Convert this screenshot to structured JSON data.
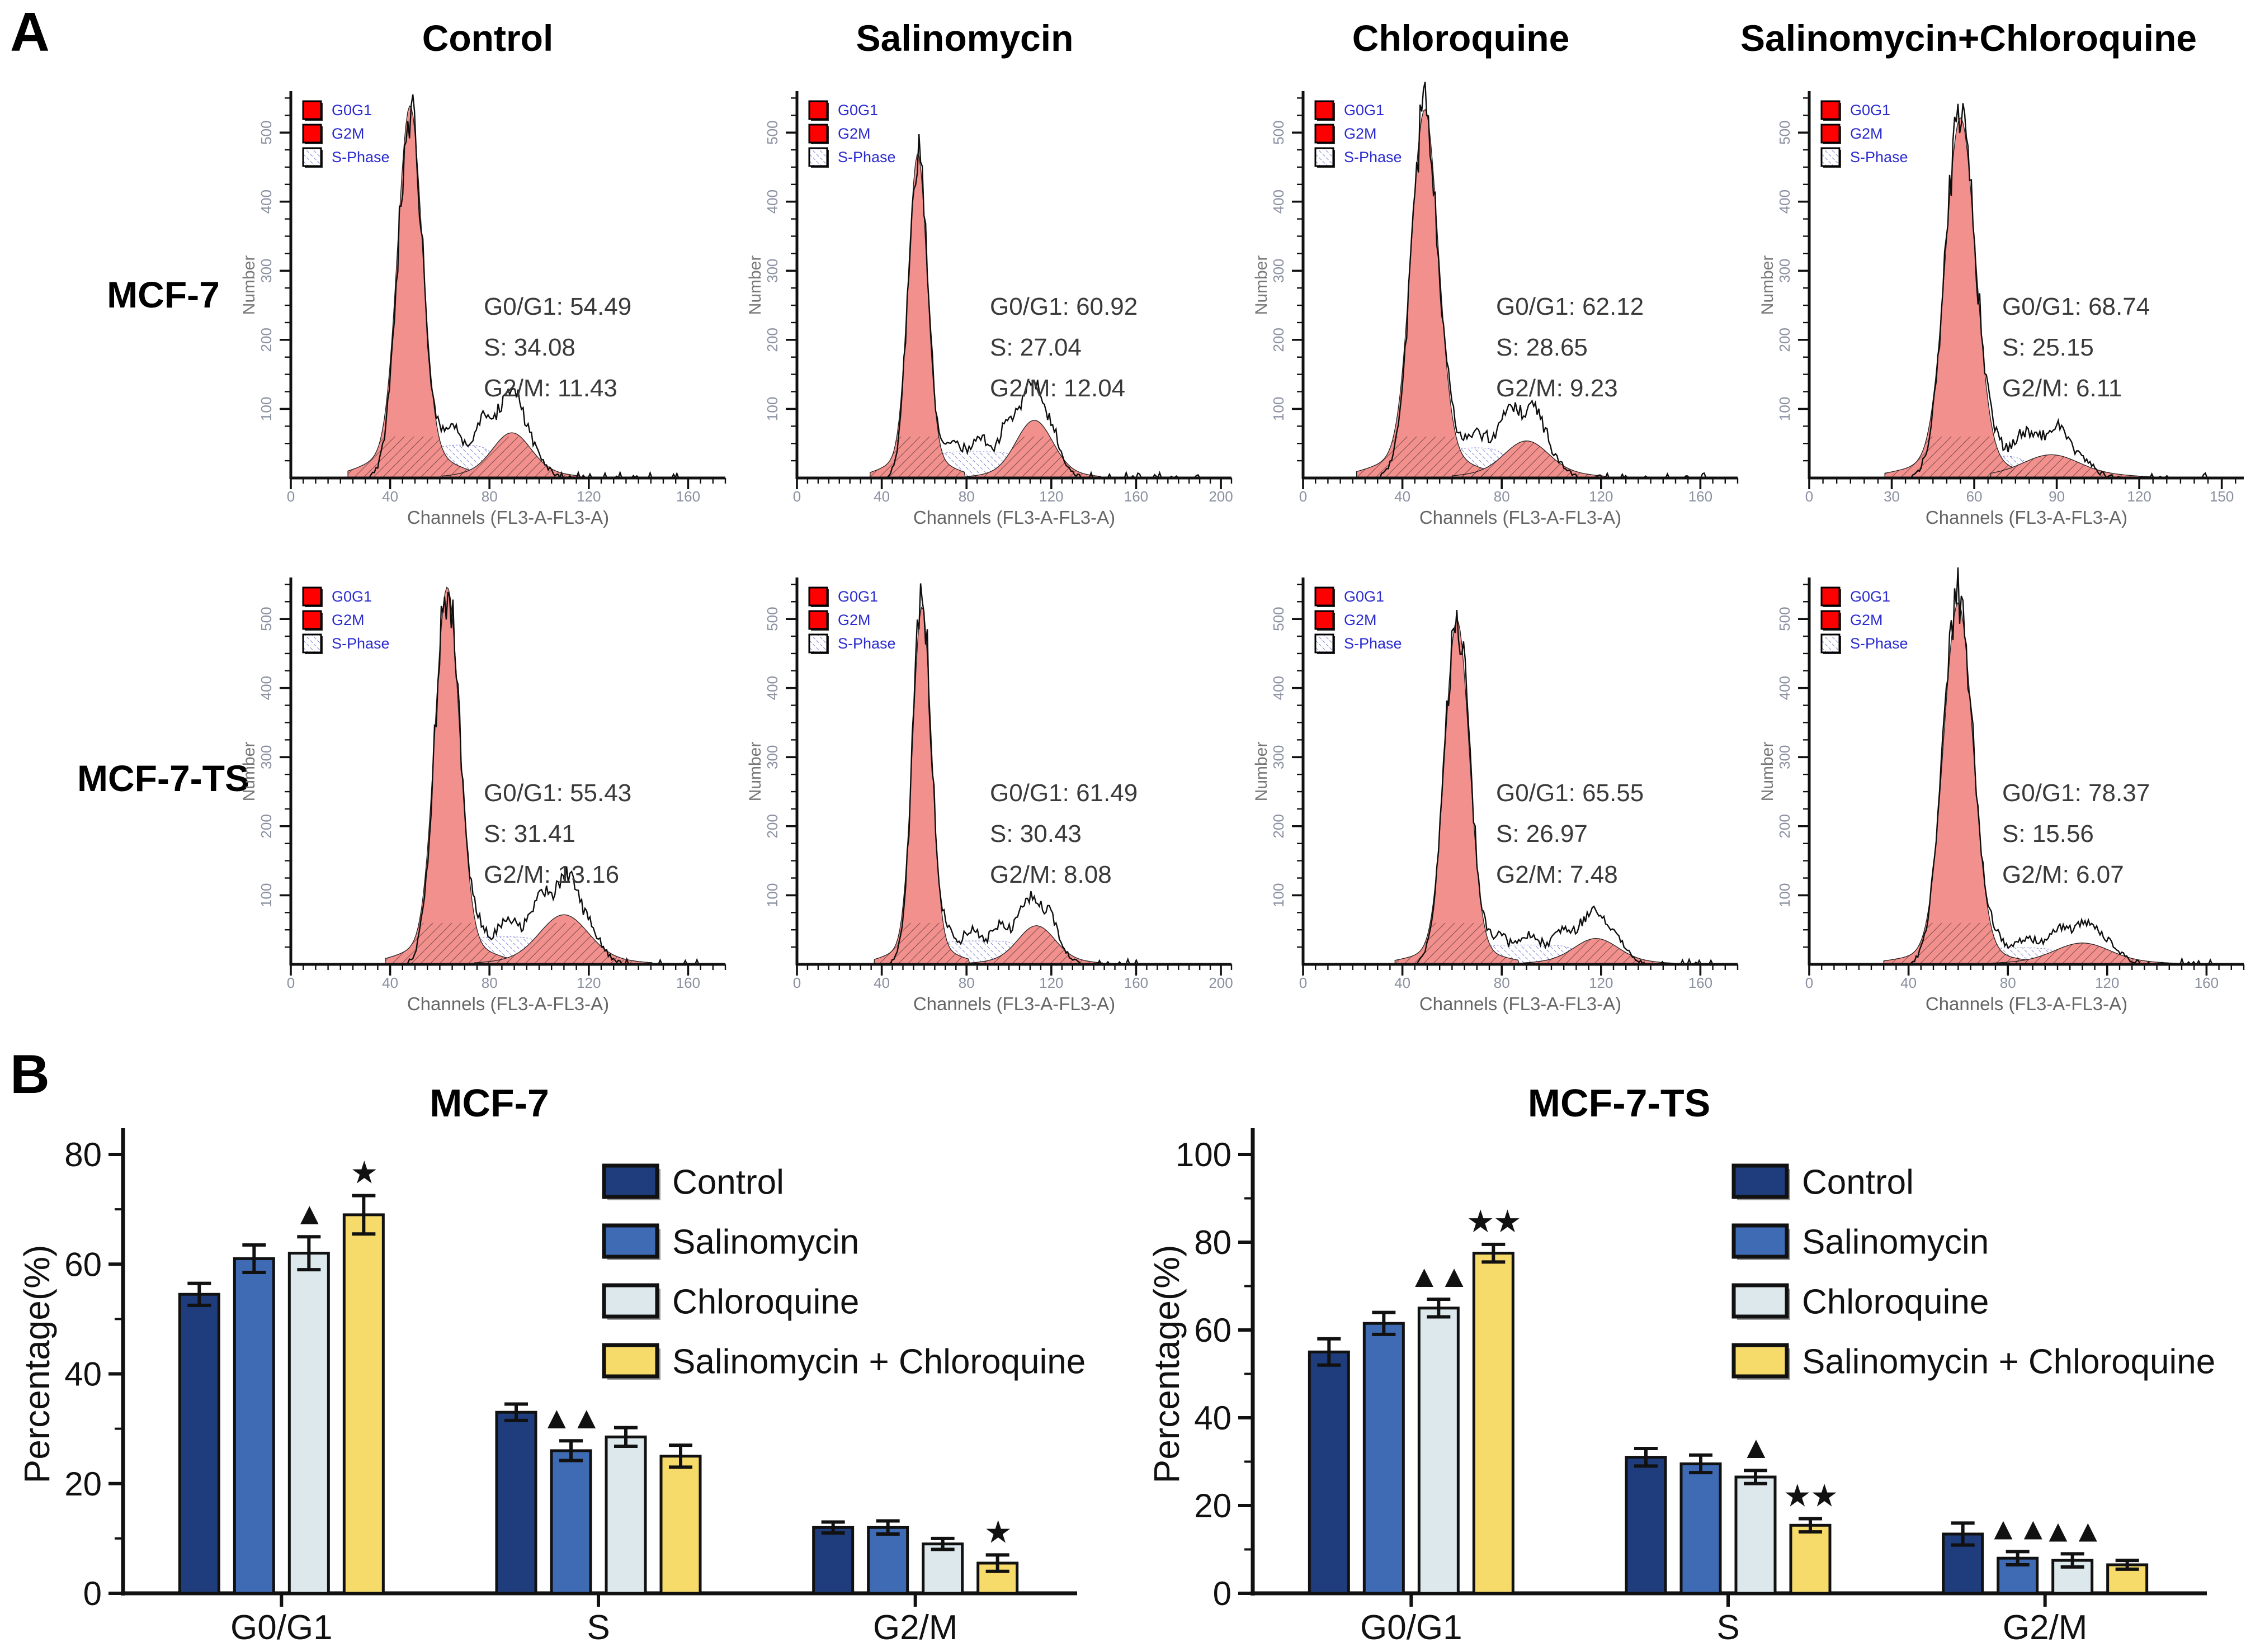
{
  "panel_a": {
    "label": "A",
    "col_headers": [
      "Control",
      "Salinomycin",
      "Chloroquine",
      "Salinomycin+Chloroquine"
    ],
    "row_labels": [
      "MCF-7",
      "MCF-7-TS"
    ],
    "hist_legend": [
      "G0G1",
      "G2M",
      "S-Phase"
    ],
    "axis": {
      "x_label": "Channels (FL3-A-FL3-A)",
      "y_label": "Number",
      "y_ticks": [
        100,
        200,
        300,
        400,
        500
      ],
      "y_max": 560
    },
    "annotation_labels": [
      "G0/G1",
      "S",
      "G2/M"
    ],
    "colors": {
      "peak_fill": "#f2908d",
      "legend_red": "#fe0000",
      "legend_text": "#2b2bd0",
      "hatch_blue": "#7a7ad8",
      "outline": "#0d0d0d",
      "tick_text": "#8a90a0",
      "axis_text": "#666666"
    },
    "histograms": [
      {
        "row": "MCF-7",
        "treatment": "Control",
        "values": {
          "g0g1": "54.49",
          "s": "34.08",
          "g2m": "11.43"
        },
        "x_ticks": [
          0,
          40,
          80,
          120,
          160
        ],
        "x_max": 175,
        "shape": {
          "g1c": 48,
          "g1w": 5,
          "peak": 530,
          "s_h": 48,
          "g2c": 89,
          "g2w": 7,
          "g2h": 58,
          "seed": 11
        }
      },
      {
        "row": "MCF-7",
        "treatment": "Salinomycin",
        "values": {
          "g0g1": "60.92",
          "s": "27.04",
          "g2m": "12.04"
        },
        "x_ticks": [
          0,
          40,
          80,
          120,
          160,
          200
        ],
        "x_max": 205,
        "shape": {
          "g1c": 57,
          "g1w": 4.5,
          "peak": 465,
          "s_h": 38,
          "g2c": 112,
          "g2w": 8,
          "g2h": 82,
          "seed": 22
        }
      },
      {
        "row": "MCF-7",
        "treatment": "Chloroquine",
        "values": {
          "g0g1": "62.12",
          "s": "28.65",
          "g2m": "9.23"
        },
        "x_ticks": [
          0,
          40,
          80,
          120,
          160
        ],
        "x_max": 175,
        "shape": {
          "g1c": 49,
          "g1w": 5.5,
          "peak": 528,
          "s_h": 44,
          "g2c": 90,
          "g2w": 8,
          "g2h": 46,
          "seed": 33
        }
      },
      {
        "row": "MCF-7",
        "treatment": "Salinomycin+Chloroquine",
        "values": {
          "g0g1": "68.74",
          "s": "25.15",
          "g2m": "6.11"
        },
        "x_ticks": [
          0,
          30,
          60,
          90,
          120,
          150
        ],
        "x_max": 158,
        "shape": {
          "g1c": 55,
          "g1w": 5.5,
          "peak": 525,
          "s_h": 33,
          "g2c": 88,
          "g2w": 9,
          "g2h": 27,
          "seed": 44
        }
      },
      {
        "row": "MCF-7-TS",
        "treatment": "Control",
        "values": {
          "g0g1": "55.43",
          "s": "31.41",
          "g2m": "13.16"
        },
        "x_ticks": [
          0,
          40,
          80,
          120,
          160
        ],
        "x_max": 175,
        "shape": {
          "g1c": 63,
          "g1w": 5,
          "peak": 545,
          "s_h": 40,
          "g2c": 110,
          "g2w": 9,
          "g2h": 68,
          "seed": 55
        }
      },
      {
        "row": "MCF-7-TS",
        "treatment": "Salinomycin",
        "values": {
          "g0g1": "61.49",
          "s": "30.43",
          "g2m": "8.08"
        },
        "x_ticks": [
          0,
          40,
          80,
          120,
          160,
          200
        ],
        "x_max": 205,
        "shape": {
          "g1c": 59,
          "g1w": 4.5,
          "peak": 520,
          "s_h": 34,
          "g2c": 113,
          "g2w": 8,
          "g2h": 52,
          "seed": 66
        }
      },
      {
        "row": "MCF-7-TS",
        "treatment": "Chloroquine",
        "values": {
          "g0g1": "65.55",
          "s": "26.97",
          "g2m": "7.48"
        },
        "x_ticks": [
          0,
          40,
          80,
          120,
          160
        ],
        "x_max": 175,
        "shape": {
          "g1c": 62,
          "g1w": 5,
          "peak": 505,
          "s_h": 28,
          "g2c": 118,
          "g2w": 8,
          "g2h": 33,
          "seed": 77
        }
      },
      {
        "row": "MCF-7-TS",
        "treatment": "Salinomycin+Chloroquine",
        "values": {
          "g0g1": "78.37",
          "s": "15.56",
          "g2m": "6.07"
        },
        "x_ticks": [
          0,
          40,
          80,
          120,
          160
        ],
        "x_max": 175,
        "shape": {
          "g1c": 60,
          "g1w": 6,
          "peak": 535,
          "s_h": 24,
          "g2c": 110,
          "g2w": 10,
          "g2h": 27,
          "seed": 88
        }
      }
    ]
  },
  "panel_b": {
    "label": "B"
  },
  "chart_data": [
    {
      "type": "bar",
      "title": "MCF-7",
      "ylabel": "Percentage(%)",
      "xlabel": "",
      "ylim": [
        0,
        80
      ],
      "yticks": [
        0,
        20,
        40,
        60,
        80
      ],
      "categories": [
        "G0/G1",
        "S",
        "G2/M"
      ],
      "series": [
        {
          "name": "Control",
          "color": "#1f3d7c",
          "values": [
            54.5,
            33,
            12
          ],
          "errors": [
            2,
            1.5,
            1
          ]
        },
        {
          "name": "Salinomycin",
          "color": "#3e6bb4",
          "values": [
            61,
            26,
            12
          ],
          "errors": [
            2.5,
            1.8,
            1.2
          ]
        },
        {
          "name": "Chloroquine",
          "color": "#dde8ec",
          "values": [
            62,
            28.5,
            9
          ],
          "errors": [
            3,
            1.7,
            1
          ]
        },
        {
          "name": "Salinomycin + Chloroquine",
          "color": "#f6db6a",
          "values": [
            69,
            25,
            5.5
          ],
          "errors": [
            3.5,
            2,
            1.5
          ]
        }
      ],
      "annotations": [
        {
          "category": 0,
          "series": 2,
          "symbol": "▲"
        },
        {
          "category": 0,
          "series": 3,
          "symbol": "★"
        },
        {
          "category": 1,
          "series": 1,
          "symbol": "▲▲"
        },
        {
          "category": 2,
          "series": 3,
          "symbol": "★"
        }
      ],
      "legend_position": "upper right",
      "grid": false
    },
    {
      "type": "bar",
      "title": "MCF-7-TS",
      "ylabel": "Percentage(%)",
      "xlabel": "",
      "ylim": [
        0,
        100
      ],
      "yticks": [
        0,
        20,
        40,
        60,
        80,
        100
      ],
      "categories": [
        "G0/G1",
        "S",
        "G2/M"
      ],
      "series": [
        {
          "name": "Control",
          "color": "#1f3d7c",
          "values": [
            55,
            31,
            13.5
          ],
          "errors": [
            3,
            2,
            2.5
          ]
        },
        {
          "name": "Salinomycin",
          "color": "#3e6bb4",
          "values": [
            61.5,
            29.5,
            8
          ],
          "errors": [
            2.5,
            2,
            1.5
          ]
        },
        {
          "name": "Chloroquine",
          "color": "#dde8ec",
          "values": [
            65,
            26.5,
            7.5
          ],
          "errors": [
            2,
            1.5,
            1.5
          ]
        },
        {
          "name": "Salinomycin + Chloroquine",
          "color": "#f6db6a",
          "values": [
            77.5,
            15.5,
            6.5
          ],
          "errors": [
            2,
            1.5,
            1
          ]
        }
      ],
      "annotations": [
        {
          "category": 0,
          "series": 2,
          "symbol": "▲▲"
        },
        {
          "category": 0,
          "series": 3,
          "symbol": "★★"
        },
        {
          "category": 1,
          "series": 2,
          "symbol": "▲"
        },
        {
          "category": 1,
          "series": 3,
          "symbol": "★★"
        },
        {
          "category": 2,
          "series": 1,
          "symbol": "▲▲"
        },
        {
          "category": 2,
          "series": 2,
          "symbol": "▲▲"
        }
      ],
      "legend_position": "upper right",
      "grid": false
    }
  ]
}
